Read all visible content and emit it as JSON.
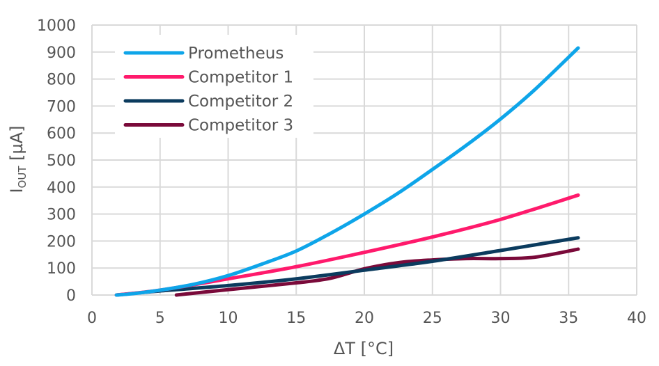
{
  "chart_data": {
    "type": "line",
    "title": "",
    "xlabel": "ΔT [°C]",
    "ylabel_main": "I",
    "ylabel_sub": "OUT",
    "ylabel_unit": " [µA]",
    "xlim": [
      0,
      40
    ],
    "ylim": [
      0,
      1000
    ],
    "xticks": [
      0,
      5,
      10,
      15,
      20,
      25,
      30,
      35,
      40
    ],
    "yticks": [
      0,
      100,
      200,
      300,
      400,
      500,
      600,
      700,
      800,
      900,
      1000
    ],
    "grid": true,
    "legend_position": "top-left",
    "series": [
      {
        "name": "Prometheus",
        "color": "#0ea5e9",
        "x": [
          1.8,
          3,
          5,
          7.5,
          10,
          12.5,
          15,
          17.5,
          20,
          22.5,
          25,
          27.5,
          30,
          32.5,
          35.7
        ],
        "y": [
          0,
          5,
          18,
          40,
          72,
          115,
          163,
          228,
          300,
          378,
          465,
          555,
          652,
          760,
          915
        ]
      },
      {
        "name": "Competitor 1",
        "color": "#ff1a6c",
        "x": [
          1.8,
          5,
          10,
          15,
          20,
          25,
          30,
          35.7
        ],
        "y": [
          0,
          18,
          60,
          105,
          158,
          215,
          280,
          370
        ]
      },
      {
        "name": "Competitor 2",
        "color": "#0b3b5e",
        "x": [
          1.8,
          5,
          10,
          15,
          20,
          25,
          30,
          35.7
        ],
        "y": [
          0,
          15,
          35,
          60,
          92,
          125,
          165,
          212
        ]
      },
      {
        "name": "Competitor 3",
        "color": "#7a0a3a",
        "x": [
          6.2,
          10,
          15,
          17.5,
          20,
          22.5,
          25,
          27.5,
          30,
          32.5,
          35.7
        ],
        "y": [
          0,
          20,
          45,
          62,
          97,
          120,
          130,
          135,
          135,
          140,
          170
        ]
      }
    ]
  }
}
